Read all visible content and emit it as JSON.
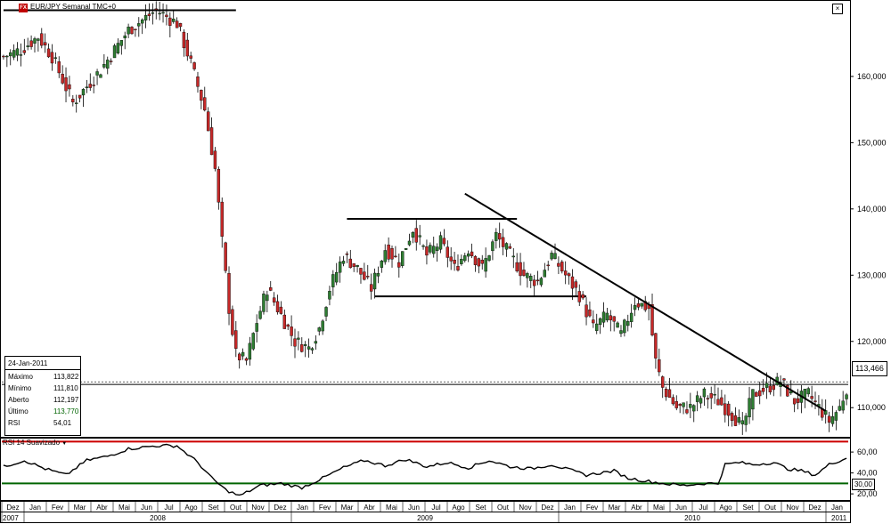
{
  "window": {
    "title": "EUR/JPY Semanal TMC+0"
  },
  "info_panel": {
    "date": "24-Jan-2011",
    "rows": [
      {
        "label": "Máximo",
        "value": "113,822"
      },
      {
        "label": "Mínimo",
        "value": "111,810"
      },
      {
        "label": "Aberto",
        "value": "112,197"
      },
      {
        "label": "Último",
        "value": "113,770"
      },
      {
        "label": "RSI",
        "value": "54,01"
      }
    ]
  },
  "price_label": "113,466",
  "rsi_current_label": "30,00",
  "rsi_title": "RSI 14 Suavizado",
  "colors": {
    "up": "#2e7d32",
    "down": "#c62828",
    "rsi_upper": "#cc0000",
    "rsi_lower": "#006400",
    "last_value": "#006400"
  },
  "chart_data": [
    {
      "type": "candlestick",
      "title": "EUR/JPY Semanal TMC+0",
      "ylim": [
        106,
        171
      ],
      "yticks": [
        {
          "value": 110,
          "label": "110,000"
        },
        {
          "value": 120,
          "label": "120,000"
        },
        {
          "value": 130,
          "label": "130,000"
        },
        {
          "value": 140,
          "label": "140,000"
        },
        {
          "value": 150,
          "label": "150,000"
        },
        {
          "value": 160,
          "label": "160,000"
        }
      ],
      "months": [
        "Dez",
        "Jan",
        "Fev",
        "Mar",
        "Abr",
        "Mai",
        "Jun",
        "Jul",
        "Ago",
        "Set",
        "Out",
        "Nov",
        "Dez",
        "Jan",
        "Fev",
        "Mar",
        "Abr",
        "Mai",
        "Jun",
        "Jul",
        "Ago",
        "Set",
        "Out",
        "Nov",
        "Dez",
        "Jan",
        "Fev",
        "Mar",
        "Abr",
        "Mai",
        "Jun",
        "Jul",
        "Ago",
        "Set",
        "Out",
        "Nov",
        "Dez",
        "Jan"
      ],
      "years": [
        "2007",
        "2008",
        "2009",
        "2010",
        "2011"
      ],
      "anchors": [
        [
          0,
          163
        ],
        [
          5,
          164
        ],
        [
          10,
          166
        ],
        [
          14,
          163
        ],
        [
          20,
          156
        ],
        [
          28,
          161
        ],
        [
          36,
          167
        ],
        [
          44,
          170
        ],
        [
          50,
          168
        ],
        [
          54,
          162
        ],
        [
          58,
          155
        ],
        [
          61,
          146
        ],
        [
          63,
          135
        ],
        [
          65,
          125
        ],
        [
          67,
          118
        ],
        [
          70,
          117
        ],
        [
          73,
          123
        ],
        [
          76,
          128
        ],
        [
          80,
          124
        ],
        [
          84,
          120
        ],
        [
          88,
          119
        ],
        [
          91,
          122
        ],
        [
          94,
          128
        ],
        [
          98,
          133
        ],
        [
          102,
          131
        ],
        [
          106,
          128
        ],
        [
          110,
          134
        ],
        [
          114,
          132
        ],
        [
          118,
          137
        ],
        [
          122,
          133
        ],
        [
          126,
          135
        ],
        [
          130,
          131
        ],
        [
          134,
          134
        ],
        [
          138,
          131
        ],
        [
          142,
          136
        ],
        [
          146,
          133
        ],
        [
          150,
          130
        ],
        [
          154,
          129
        ],
        [
          158,
          133
        ],
        [
          162,
          130
        ],
        [
          166,
          127
        ],
        [
          170,
          122
        ],
        [
          174,
          124
        ],
        [
          178,
          121
        ],
        [
          182,
          126
        ],
        [
          186,
          125
        ],
        [
          188,
          117
        ],
        [
          190,
          113
        ],
        [
          194,
          110
        ],
        [
          198,
          110
        ],
        [
          202,
          112
        ],
        [
          206,
          111
        ],
        [
          210,
          109
        ],
        [
          213,
          107
        ],
        [
          216,
          112
        ],
        [
          220,
          113
        ],
        [
          224,
          114
        ],
        [
          228,
          111
        ],
        [
          232,
          112
        ],
        [
          235,
          110
        ],
        [
          238,
          108
        ],
        [
          241,
          110
        ],
        [
          243,
          113
        ]
      ],
      "horizontal_lines": [
        {
          "price": 170,
          "from": 0,
          "to": 67
        },
        {
          "price": 138.5,
          "from": 99,
          "to": 148
        },
        {
          "price": 126.8,
          "from": 107,
          "to": 168
        }
      ],
      "trend_line": {
        "from": [
          133,
          142.3
        ],
        "to": [
          237,
          109.5
        ]
      },
      "reference_line": 113.9
    },
    {
      "type": "line",
      "title": "RSI 14 Suavizado",
      "ylim": [
        15,
        72
      ],
      "yticks": [
        {
          "value": 20,
          "label": "20,00"
        },
        {
          "value": 40,
          "label": "40,00"
        },
        {
          "value": 60,
          "label": "60,00"
        }
      ],
      "levels": [
        70,
        30
      ],
      "anchors": [
        [
          0,
          46
        ],
        [
          6,
          52
        ],
        [
          12,
          44
        ],
        [
          18,
          38
        ],
        [
          24,
          52
        ],
        [
          30,
          56
        ],
        [
          36,
          63
        ],
        [
          44,
          66
        ],
        [
          50,
          66
        ],
        [
          56,
          50
        ],
        [
          60,
          35
        ],
        [
          64,
          24
        ],
        [
          68,
          18
        ],
        [
          74,
          28
        ],
        [
          80,
          30
        ],
        [
          86,
          26
        ],
        [
          92,
          35
        ],
        [
          98,
          45
        ],
        [
          104,
          52
        ],
        [
          110,
          47
        ],
        [
          116,
          53
        ],
        [
          122,
          46
        ],
        [
          128,
          50
        ],
        [
          134,
          45
        ],
        [
          140,
          52
        ],
        [
          146,
          46
        ],
        [
          152,
          44
        ],
        [
          158,
          48
        ],
        [
          164,
          42
        ],
        [
          168,
          38
        ],
        [
          172,
          40
        ],
        [
          176,
          42
        ],
        [
          180,
          35
        ],
        [
          186,
          32
        ],
        [
          190,
          30
        ],
        [
          196,
          28
        ],
        [
          202,
          30
        ],
        [
          206,
          30
        ],
        [
          208,
          48
        ],
        [
          212,
          50
        ],
        [
          216,
          48
        ],
        [
          222,
          50
        ],
        [
          226,
          44
        ],
        [
          230,
          42
        ],
        [
          234,
          38
        ],
        [
          238,
          48
        ],
        [
          241,
          52
        ],
        [
          243,
          54
        ]
      ]
    }
  ]
}
